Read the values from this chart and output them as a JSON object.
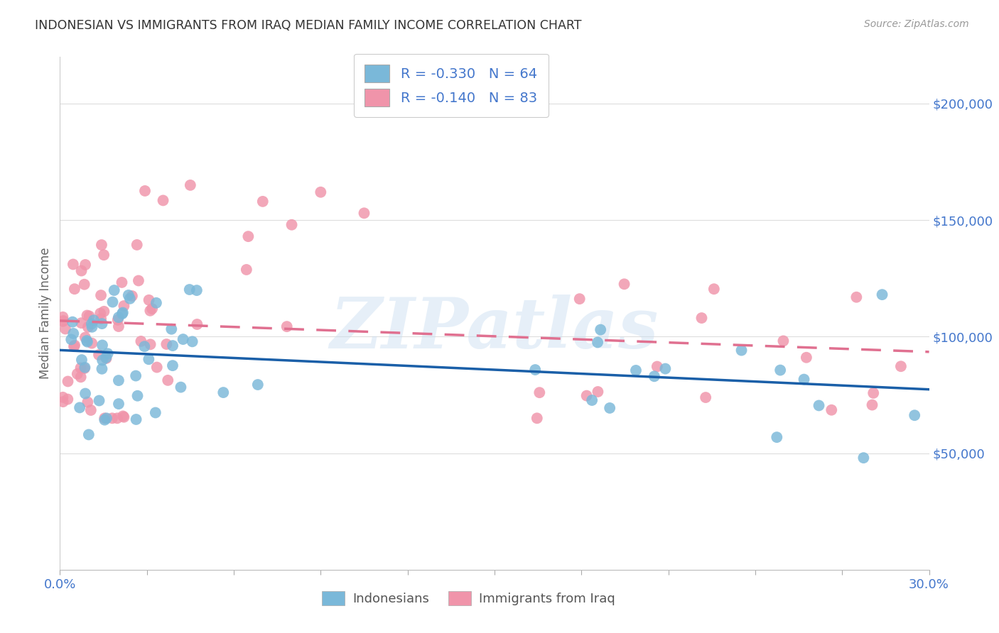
{
  "title": "INDONESIAN VS IMMIGRANTS FROM IRAQ MEDIAN FAMILY INCOME CORRELATION CHART",
  "source": "Source: ZipAtlas.com",
  "ylabel": "Median Family Income",
  "xlim": [
    0.0,
    0.3
  ],
  "ylim": [
    0,
    220000
  ],
  "watermark": "ZIPatlas",
  "legend_entries": [
    {
      "label": "R = -0.330   N = 64",
      "color": "#a8c4e0"
    },
    {
      "label": "R = -0.140   N = 83",
      "color": "#f4a8b8"
    }
  ],
  "indonesian_R": -0.33,
  "indonesian_N": 64,
  "iraq_R": -0.14,
  "iraq_N": 83,
  "dot_color_indonesian": "#7ab8d9",
  "dot_color_iraq": "#f094aa",
  "line_color_indonesian": "#1a5fa8",
  "line_color_iraq": "#e07090",
  "legend_label_indonesian": "Indonesians",
  "legend_label_iraq": "Immigrants from Iraq",
  "background_color": "#ffffff",
  "grid_color": "#dddddd",
  "title_color": "#333333",
  "axis_color": "#4477cc",
  "ytick_labels": [
    "$50,000",
    "$100,000",
    "$150,000",
    "$200,000"
  ],
  "ytick_values": [
    50000,
    100000,
    150000,
    200000
  ]
}
